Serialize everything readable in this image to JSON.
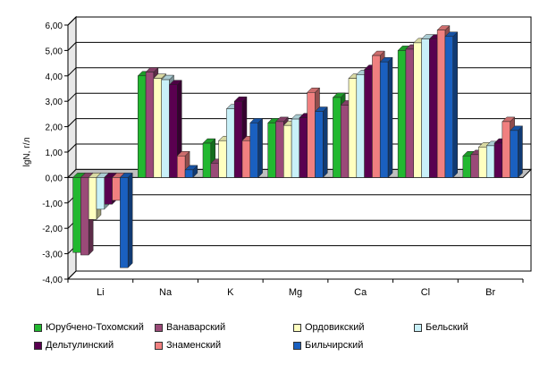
{
  "chart_data": {
    "type": "bar",
    "ylabel": "lgN, г/л",
    "ylim": [
      -4,
      6
    ],
    "yticks": [
      "-4,00",
      "-3,00",
      "-2,00",
      "-1,00",
      "0,00",
      "1,00",
      "2,00",
      "3,00",
      "4,00",
      "5,00",
      "6,00"
    ],
    "categories": [
      "Li",
      "Na",
      "K",
      "Mg",
      "Ca",
      "Cl",
      "Br"
    ],
    "grid": true,
    "legend": "bottom",
    "series": [
      {
        "name": "Юрубчено-Тохомский",
        "color": "#22b830",
        "values": [
          -2.95,
          4.0,
          1.35,
          2.15,
          3.15,
          5.0,
          0.85
        ]
      },
      {
        "name": "Ванаварский",
        "color": "#9a4a78",
        "values": [
          -3.05,
          4.15,
          0.55,
          2.2,
          2.85,
          5.05,
          0.9
        ]
      },
      {
        "name": "Ордовикский",
        "color": "#ffffc0",
        "values": [
          -1.65,
          3.9,
          1.45,
          2.05,
          3.9,
          5.3,
          1.2
        ]
      },
      {
        "name": "Бельский",
        "color": "#c8f0f8",
        "values": [
          -1.25,
          3.85,
          2.7,
          2.3,
          4.05,
          5.45,
          1.25
        ]
      },
      {
        "name": "Дельтулинский",
        "color": "#5a0050",
        "values": [
          -1.05,
          3.65,
          3.0,
          2.35,
          4.25,
          5.45,
          1.35
        ]
      },
      {
        "name": "Знаменский",
        "color": "#f08080",
        "values": [
          -0.9,
          0.85,
          1.45,
          3.35,
          4.8,
          5.8,
          2.2
        ]
      },
      {
        "name": "Бильчирский",
        "color": "#1a60c0",
        "values": [
          -3.55,
          0.3,
          2.15,
          2.6,
          4.55,
          5.55,
          1.85
        ]
      }
    ]
  }
}
